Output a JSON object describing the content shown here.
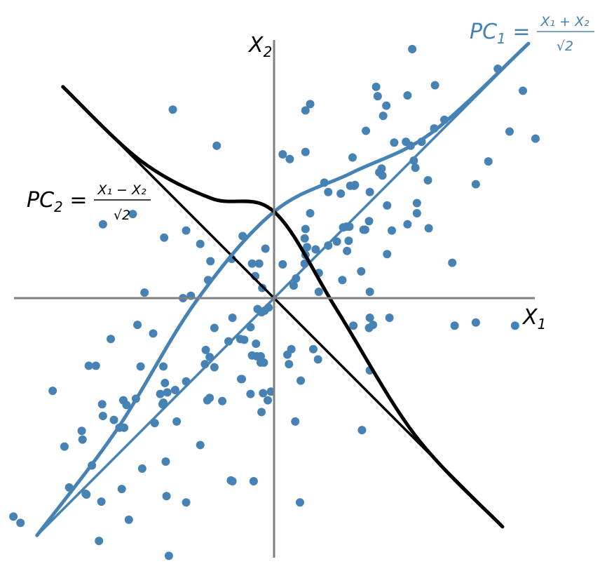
{
  "chart_data": {
    "type": "scatter",
    "x_axis": {
      "label": "X",
      "sub": "1"
    },
    "y_axis": {
      "label": "X",
      "sub": "2"
    },
    "xlim": [
      -3.3,
      3.3
    ],
    "ylim": [
      -3.3,
      3.3
    ],
    "grid": false,
    "colors": {
      "points": "#4682b4",
      "pc1": "#4682b4",
      "pc2": "#000000",
      "axes": "#808080"
    },
    "pc1_label": {
      "lhs": "PC",
      "sub": "1",
      "num": "X₁ + X₂",
      "den": "√2"
    },
    "pc2_label": {
      "lhs": "PC",
      "sub": "2",
      "num": "X₁ − X₂",
      "den": "√2"
    },
    "pc1_line": [
      [
        -3.02,
        -3.02
      ],
      [
        3.24,
        3.24
      ]
    ],
    "pc2_line": [
      [
        -2.69,
        2.69
      ],
      [
        2.91,
        -2.91
      ]
    ],
    "pc1_curve": [
      [
        -3.02,
        -3.02
      ],
      [
        -2.0,
        -1.67
      ],
      [
        -1.0,
        -0.05
      ],
      [
        0.0,
        1.1
      ],
      [
        1.0,
        1.6
      ],
      [
        2.0,
        2.1
      ],
      [
        3.24,
        3.24
      ]
    ],
    "pc2_curve": [
      [
        -2.69,
        2.69
      ],
      [
        -1.7,
        1.75
      ],
      [
        -0.8,
        1.27
      ],
      [
        0.0,
        1.1
      ],
      [
        0.8,
        -0.15
      ],
      [
        1.8,
        -1.75
      ],
      [
        2.91,
        -2.91
      ]
    ],
    "points": [
      [
        -3.32,
        -2.78
      ],
      [
        -3.23,
        -2.86
      ],
      [
        -2.82,
        -1.18
      ],
      [
        -2.67,
        -1.89
      ],
      [
        -2.61,
        -2.41
      ],
      [
        -2.45,
        -1.69
      ],
      [
        -2.44,
        -1.8
      ],
      [
        -2.4,
        -2.49
      ],
      [
        -2.39,
        -2.5
      ],
      [
        -2.36,
        -0.86
      ],
      [
        -2.32,
        -2.13
      ],
      [
        -2.27,
        -0.86
      ],
      [
        -2.23,
        -3.09
      ],
      [
        -2.2,
        -2.59
      ],
      [
        -2.19,
        -1.35
      ],
      [
        -2.18,
        -1.5
      ],
      [
        -2.18,
        0.94
      ],
      [
        -2.08,
        -0.52
      ],
      [
        -2.04,
        -1.55
      ],
      [
        -1.97,
        -1.65
      ],
      [
        -1.94,
        -2.43
      ],
      [
        -1.92,
        -1.3
      ],
      [
        -1.91,
        -1.65
      ],
      [
        -1.88,
        -1.36
      ],
      [
        -1.85,
        -2.82
      ],
      [
        -1.8,
        1.07
      ],
      [
        -1.76,
        -1.28
      ],
      [
        -1.74,
        -0.34
      ],
      [
        -1.7,
        -0.87
      ],
      [
        -1.68,
        -2.17
      ],
      [
        -1.65,
        0.07
      ],
      [
        -1.54,
        -0.45
      ],
      [
        -1.52,
        -1.59
      ],
      [
        -1.45,
        -1.22
      ],
      [
        -1.42,
        -1.35
      ],
      [
        -1.41,
        -0.87
      ],
      [
        -1.41,
        -1.33
      ],
      [
        -1.4,
        0.77
      ],
      [
        -1.39,
        -1.08
      ],
      [
        -1.38,
        -2.08
      ],
      [
        -1.37,
        -2.52
      ],
      [
        -1.36,
        -1.2
      ],
      [
        -1.34,
        -3.28
      ],
      [
        -1.29,
        2.4
      ],
      [
        -1.26,
        -1.17
      ],
      [
        -1.24,
        -1.57
      ],
      [
        -1.16,
        0.0
      ],
      [
        -1.12,
        -2.6
      ],
      [
        -1.12,
        -1.06
      ],
      [
        -1.12,
        0.86
      ],
      [
        -1.06,
        0.03
      ],
      [
        -0.94,
        -1.87
      ],
      [
        -0.94,
        0.69
      ],
      [
        -0.88,
        -0.84
      ],
      [
        -0.87,
        -0.66
      ],
      [
        -0.85,
        -1.3
      ],
      [
        -0.84,
        0.23
      ],
      [
        -0.82,
        -0.75
      ],
      [
        -0.82,
        -1.27
      ],
      [
        -0.81,
        0.47
      ],
      [
        -0.76,
        -0.38
      ],
      [
        -0.76,
        -0.88
      ],
      [
        -0.73,
        1.94
      ],
      [
        -0.66,
        -1.31
      ],
      [
        -0.58,
        -0.55
      ],
      [
        -0.55,
        -2.32
      ],
      [
        -0.54,
        0.5
      ],
      [
        -0.53,
        -2.33
      ],
      [
        -0.53,
        -0.25
      ],
      [
        -0.43,
        -0.52
      ],
      [
        -0.42,
        -1.03
      ],
      [
        -0.41,
        -1.03
      ],
      [
        -0.4,
        0.79
      ],
      [
        -0.38,
        -0.53
      ],
      [
        -0.3,
        -1.22
      ],
      [
        -0.3,
        -0.37
      ],
      [
        -0.28,
        0.44
      ],
      [
        -0.28,
        -0.73
      ],
      [
        -0.26,
        -2.33
      ],
      [
        -0.24,
        0.28
      ],
      [
        -0.23,
        -0.58
      ],
      [
        -0.22,
        -0.74
      ],
      [
        -0.21,
        -0.14
      ],
      [
        -0.19,
        0.44
      ],
      [
        -0.17,
        -0.74
      ],
      [
        -0.17,
        -0.82
      ],
      [
        -0.16,
        -1.45
      ],
      [
        -0.16,
        -0.18
      ],
      [
        -0.15,
        0.13
      ],
      [
        -0.14,
        -1.21
      ],
      [
        -0.13,
        -0.82
      ],
      [
        -0.12,
        -0.16
      ],
      [
        -0.11,
        0.63
      ],
      [
        -0.08,
        -1.3
      ],
      [
        -0.07,
        -0.12
      ],
      [
        -0.04,
        -1.19
      ],
      [
        0.11,
        0.43
      ],
      [
        0.11,
        1.83
      ],
      [
        0.17,
        -0.72
      ],
      [
        0.19,
        -0.84
      ],
      [
        0.2,
        1.77
      ],
      [
        0.22,
        -0.65
      ],
      [
        0.25,
        0.16
      ],
      [
        0.27,
        -1.57
      ],
      [
        0.28,
        0.25
      ],
      [
        0.33,
        -2.6
      ],
      [
        0.34,
        -1.05
      ],
      [
        0.39,
        0.76
      ],
      [
        0.39,
        0.44
      ],
      [
        0.4,
        2.39
      ],
      [
        0.4,
        0.88
      ],
      [
        0.4,
        1.86
      ],
      [
        0.4,
        0.55
      ],
      [
        0.42,
        0.65
      ],
      [
        0.46,
        2.47
      ],
      [
        0.46,
        1.08
      ],
      [
        0.5,
        -0.65
      ],
      [
        0.53,
        0.62
      ],
      [
        0.56,
        -0.78
      ],
      [
        0.57,
        0.32
      ],
      [
        0.57,
        0.08
      ],
      [
        0.69,
        0.67
      ],
      [
        0.64,
        1.47
      ],
      [
        0.69,
        1.35
      ],
      [
        0.8,
        0.72
      ],
      [
        0.85,
        1.33
      ],
      [
        0.87,
        0.23
      ],
      [
        0.88,
        0.9
      ],
      [
        0.92,
        0.91
      ],
      [
        0.93,
        0.6
      ],
      [
        0.95,
        0.73
      ],
      [
        0.96,
        0.91
      ],
      [
        0.97,
        1.43
      ],
      [
        1.03,
        1.44
      ],
      [
        1.0,
        1.79
      ],
      [
        1.01,
        -0.35
      ],
      [
        1.02,
        1.43
      ],
      [
        1.11,
        0.34
      ],
      [
        1.12,
        -1.68
      ],
      [
        1.14,
        0.87
      ],
      [
        1.16,
        0.87
      ],
      [
        1.17,
        2.13
      ],
      [
        1.21,
        -0.38
      ],
      [
        1.21,
        0.98
      ],
      [
        1.22,
        -0.25
      ],
      [
        1.22,
        0.08
      ],
      [
        1.22,
        -0.92
      ],
      [
        1.22,
        1.35
      ],
      [
        1.26,
        -0.34
      ],
      [
        1.3,
        2.69
      ],
      [
        1.32,
        2.57
      ],
      [
        1.34,
        1.6
      ],
      [
        1.37,
        1.65
      ],
      [
        1.38,
        1.56
      ],
      [
        1.39,
        2.32
      ],
      [
        1.43,
        2.45
      ],
      [
        1.44,
        0.56
      ],
      [
        1.44,
        1.18
      ],
      [
        1.47,
        -0.25
      ],
      [
        1.5,
        0.86
      ],
      [
        1.53,
        1.98
      ],
      [
        1.68,
        1.99
      ],
      [
        1.7,
        2.58
      ],
      [
        1.7,
        0.94
      ],
      [
        1.74,
        1.94
      ],
      [
        1.76,
        3.17
      ],
      [
        1.78,
        1.75
      ],
      [
        1.8,
        1.66
      ],
      [
        1.82,
        1.21
      ],
      [
        1.82,
        1.08
      ],
      [
        1.88,
        1.99
      ],
      [
        1.96,
        1.5
      ],
      [
        1.97,
        0.89
      ],
      [
        2.04,
        2.16
      ],
      [
        2.05,
        2.71
      ],
      [
        2.17,
        2.27
      ],
      [
        2.27,
        0.45
      ],
      [
        2.3,
        -0.35
      ],
      [
        2.57,
        1.45
      ],
      [
        2.57,
        -0.31
      ],
      [
        2.73,
        1.74
      ],
      [
        2.85,
        2.92
      ],
      [
        3.0,
        2.12
      ],
      [
        3.07,
        -0.35
      ],
      [
        3.17,
        2.64
      ],
      [
        3.33,
        2.03
      ]
    ]
  }
}
